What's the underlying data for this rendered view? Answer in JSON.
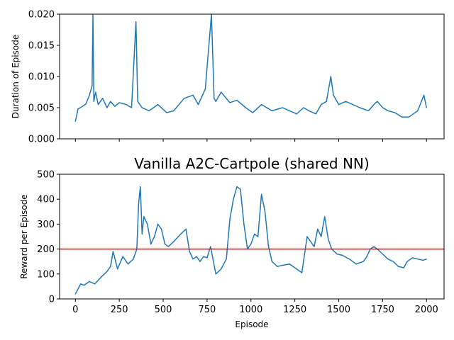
{
  "chart_data": [
    {
      "type": "line",
      "title": "",
      "xlabel": "",
      "ylabel": "Duration of Episode",
      "xlim": [
        -90,
        2100
      ],
      "ylim": [
        0,
        0.02
      ],
      "xticks": [
        0,
        250,
        500,
        750,
        1000,
        1250,
        1500,
        1750,
        2000
      ],
      "xtick_labels_shown": false,
      "yticks": [
        0.0,
        0.005,
        0.01,
        0.015,
        0.02
      ],
      "ytick_labels": [
        "0.000",
        "0.005",
        "0.010",
        "0.015",
        "0.020"
      ],
      "grid": false,
      "series_color": "#1f77b4",
      "x": [
        0,
        15,
        40,
        60,
        80,
        95,
        100,
        105,
        115,
        130,
        155,
        180,
        200,
        225,
        250,
        290,
        320,
        345,
        355,
        380,
        420,
        470,
        520,
        560,
        620,
        670,
        700,
        740,
        775,
        790,
        800,
        830,
        880,
        920,
        970,
        1010,
        1060,
        1120,
        1180,
        1220,
        1260,
        1300,
        1330,
        1370,
        1400,
        1430,
        1455,
        1470,
        1500,
        1540,
        1580,
        1620,
        1670,
        1700,
        1720,
        1750,
        1780,
        1820,
        1860,
        1900,
        1950,
        1985,
        2000
      ],
      "y": [
        0.0028,
        0.0048,
        0.0052,
        0.0056,
        0.007,
        0.0085,
        0.0199,
        0.006,
        0.0075,
        0.0055,
        0.0065,
        0.005,
        0.006,
        0.0052,
        0.0058,
        0.0055,
        0.005,
        0.0188,
        0.006,
        0.005,
        0.0045,
        0.0055,
        0.0042,
        0.0045,
        0.0065,
        0.007,
        0.0055,
        0.008,
        0.02,
        0.0065,
        0.006,
        0.0075,
        0.0058,
        0.0062,
        0.005,
        0.0042,
        0.0055,
        0.0045,
        0.005,
        0.0045,
        0.004,
        0.005,
        0.0045,
        0.004,
        0.0055,
        0.006,
        0.01,
        0.007,
        0.0055,
        0.006,
        0.0055,
        0.005,
        0.0045,
        0.0055,
        0.006,
        0.005,
        0.0045,
        0.0042,
        0.0035,
        0.0035,
        0.0045,
        0.007,
        0.005
      ]
    },
    {
      "type": "line",
      "title": "Vanilla A2C-Cartpole (shared NN)",
      "xlabel": "Episode",
      "ylabel": "Reward per Episode",
      "xlim": [
        -90,
        2100
      ],
      "ylim": [
        0,
        500
      ],
      "xticks": [
        0,
        250,
        500,
        750,
        1000,
        1250,
        1500,
        1750,
        2000
      ],
      "xtick_labels": [
        "0",
        "250",
        "500",
        "750",
        "1000",
        "1250",
        "1500",
        "1750",
        "2000"
      ],
      "yticks": [
        0,
        100,
        200,
        300,
        400,
        500
      ],
      "ytick_labels": [
        "0",
        "100",
        "200",
        "300",
        "400",
        "500"
      ],
      "grid": false,
      "series_color": "#1f77b4",
      "threshold": 200,
      "threshold_color": "#ff0000",
      "x": [
        0,
        15,
        30,
        50,
        80,
        110,
        150,
        180,
        200,
        215,
        240,
        270,
        300,
        330,
        350,
        360,
        370,
        380,
        390,
        410,
        430,
        450,
        470,
        490,
        510,
        530,
        560,
        600,
        630,
        650,
        670,
        690,
        710,
        730,
        750,
        770,
        800,
        830,
        860,
        880,
        900,
        920,
        940,
        960,
        980,
        1000,
        1020,
        1040,
        1060,
        1080,
        1100,
        1120,
        1150,
        1180,
        1220,
        1260,
        1290,
        1320,
        1340,
        1360,
        1380,
        1400,
        1420,
        1440,
        1460,
        1490,
        1520,
        1560,
        1600,
        1640,
        1660,
        1680,
        1700,
        1720,
        1750,
        1780,
        1810,
        1840,
        1870,
        1890,
        1920,
        1950,
        1980,
        2000
      ],
      "y": [
        20,
        40,
        60,
        55,
        70,
        60,
        90,
        110,
        130,
        190,
        120,
        170,
        140,
        160,
        200,
        380,
        450,
        260,
        330,
        300,
        220,
        250,
        300,
        280,
        220,
        210,
        230,
        260,
        280,
        190,
        160,
        170,
        150,
        170,
        165,
        210,
        100,
        120,
        160,
        320,
        400,
        450,
        440,
        300,
        200,
        220,
        260,
        250,
        420,
        350,
        210,
        150,
        130,
        135,
        140,
        120,
        105,
        250,
        230,
        210,
        280,
        250,
        330,
        240,
        200,
        180,
        175,
        160,
        140,
        150,
        170,
        200,
        210,
        200,
        180,
        160,
        150,
        130,
        125,
        150,
        165,
        160,
        155,
        160
      ]
    }
  ]
}
